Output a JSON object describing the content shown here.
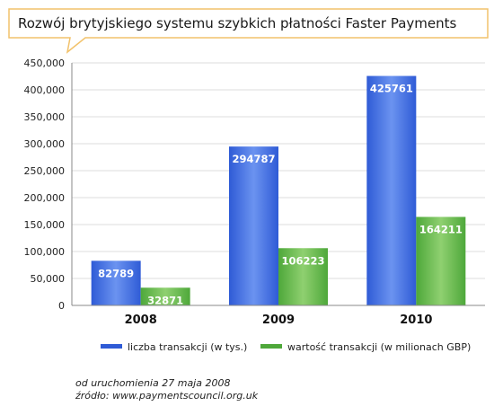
{
  "colors": {
    "series1": "#2f5bd6",
    "series1_light": "#6b93f0",
    "series2": "#4ea83a",
    "series2_light": "#8fd070",
    "gridline": "#dddddd",
    "header_border": "#f2c26b"
  },
  "chart_data": {
    "type": "bar",
    "title": "Rozwój brytyjskiego systemu szybkich płatności Faster Payments",
    "categories": [
      "2008",
      "2009",
      "2010"
    ],
    "series": [
      {
        "name": "liczba transakcji (w tys.)",
        "values": [
          82789,
          294787,
          425761
        ]
      },
      {
        "name": "wartość transakcji (w milionach GBP)",
        "values": [
          32871,
          106223,
          164211
        ]
      }
    ],
    "data_labels": [
      [
        "82789",
        "294787",
        "425761"
      ],
      [
        "32871",
        "106223",
        "164211"
      ]
    ],
    "ylim": [
      0,
      450000
    ],
    "yticks": [
      0,
      50000,
      100000,
      150000,
      200000,
      250000,
      300000,
      350000,
      400000,
      450000
    ],
    "ytick_labels": [
      "0",
      "50,000",
      "100,000",
      "150,000",
      "200,000",
      "250,000",
      "300,000",
      "350,000",
      "400,000",
      "450,000"
    ],
    "grid": true,
    "legend_position": "bottom",
    "xlabel": "",
    "ylabel": ""
  },
  "footnotes": {
    "line1": "od uruchomienia 27 maja 2008",
    "line2": "źródło: www.paymentscouncil.org.uk"
  }
}
